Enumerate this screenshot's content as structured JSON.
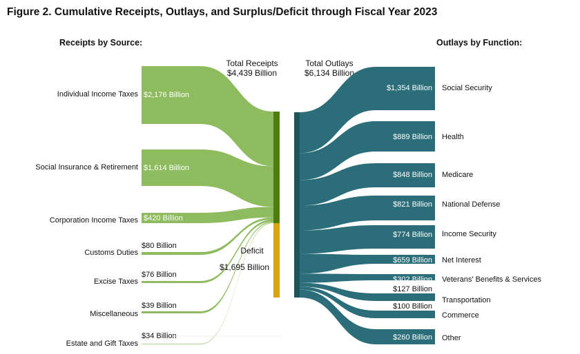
{
  "chart_data": {
    "type": "sankey",
    "title": "Figure 2. Cumulative Receipts, Outlays, and Surplus/Deficit through Fiscal Year 2023",
    "receipts_heading": "Receipts by Source:",
    "outlays_heading": "Outlays by Function:",
    "unit": "Billion",
    "total_receipts": {
      "label": "Total Receipts",
      "value_text": "$4,439 Billion",
      "value": 4439
    },
    "total_outlays": {
      "label": "Total Outlays",
      "value_text": "$6,134 Billion",
      "value": 6134
    },
    "deficit": {
      "label": "Deficit",
      "value_text": "$1,695 Billion",
      "value": 1695
    },
    "receipts": [
      {
        "name": "Individual Income Taxes",
        "value": 2176,
        "value_text": "$2,176 Billion"
      },
      {
        "name": "Social Insurance & Retirement",
        "value": 1614,
        "value_text": "$1,614 Billion"
      },
      {
        "name": "Corporation Income Taxes",
        "value": 420,
        "value_text": "$420 Billion"
      },
      {
        "name": "Customs Duties",
        "value": 80,
        "value_text": "$80 Billion"
      },
      {
        "name": "Excise Taxes",
        "value": 76,
        "value_text": "$76 Billion"
      },
      {
        "name": "Miscellaneous",
        "value": 39,
        "value_text": "$39 Billion"
      },
      {
        "name": "Estate and Gift Taxes",
        "value": 34,
        "value_text": "$34 Billion"
      }
    ],
    "outlays": [
      {
        "name": "Social Security",
        "value": 1354,
        "value_text": "$1,354 Billion"
      },
      {
        "name": "Health",
        "value": 889,
        "value_text": "$889 Billion"
      },
      {
        "name": "Medicare",
        "value": 848,
        "value_text": "$848 Billion"
      },
      {
        "name": "National Defense",
        "value": 821,
        "value_text": "$821 Billion"
      },
      {
        "name": "Income Security",
        "value": 774,
        "value_text": "$774 Billion"
      },
      {
        "name": "Net Interest",
        "value": 659,
        "value_text": "$659 Billion"
      },
      {
        "name": "Veterans' Benefits & Services",
        "value": 302,
        "value_text": "$302 Billion"
      },
      {
        "name": "Transportation",
        "value": 127,
        "value_text": "$127 Billion"
      },
      {
        "name": "Commerce",
        "value": 100,
        "value_text": "$100 Billion"
      },
      {
        "name": "Other",
        "value": 260,
        "value_text": "$260 Billion"
      }
    ],
    "colors": {
      "receipt_flow": "#8dbb5e",
      "receipt_bar": "#4f7d12",
      "deficit_bar": "#d9a414",
      "outlay_flow": "#2b6e79",
      "outlay_bar": "#1d5559"
    }
  }
}
